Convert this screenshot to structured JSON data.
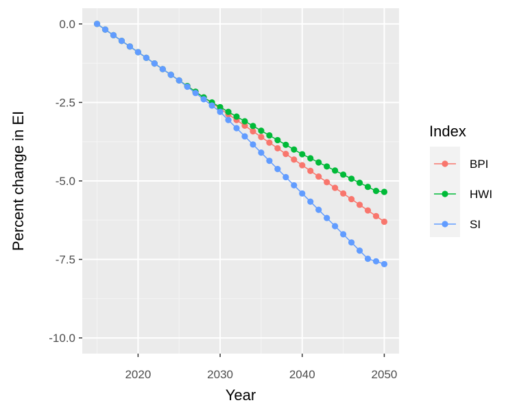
{
  "chart_data": {
    "type": "line",
    "xlabel": "Year",
    "ylabel": "Percent change in EI",
    "xlim": [
      2013.2,
      2051.8
    ],
    "ylim": [
      -10.5,
      0.5
    ],
    "x_ticks": [
      2020,
      2030,
      2040,
      2050
    ],
    "y_ticks": [
      0.0,
      -2.5,
      -5.0,
      -7.5,
      -10.0
    ],
    "x_tick_labels": [
      "2020",
      "2030",
      "2040",
      "2050"
    ],
    "y_tick_labels": [
      "0.0",
      "-2.5",
      "-5.0",
      "-7.5",
      "-10.0"
    ],
    "grid": true,
    "legend_title": "Index",
    "legend_position": "right",
    "x": [
      2015,
      2016,
      2017,
      2018,
      2019,
      2020,
      2021,
      2022,
      2023,
      2024,
      2025,
      2026,
      2027,
      2028,
      2029,
      2030,
      2031,
      2032,
      2033,
      2034,
      2035,
      2036,
      2037,
      2038,
      2039,
      2040,
      2041,
      2042,
      2043,
      2044,
      2045,
      2046,
      2047,
      2048,
      2049,
      2050
    ],
    "series": [
      {
        "name": "BPI",
        "color": "#F8766D",
        "values": [
          0.0,
          -0.18,
          -0.36,
          -0.54,
          -0.72,
          -0.9,
          -1.08,
          -1.26,
          -1.44,
          -1.62,
          -1.8,
          -1.98,
          -2.16,
          -2.34,
          -2.52,
          -2.7,
          -2.88,
          -3.06,
          -3.24,
          -3.42,
          -3.6,
          -3.78,
          -3.96,
          -4.14,
          -4.32,
          -4.5,
          -4.68,
          -4.86,
          -5.04,
          -5.22,
          -5.4,
          -5.58,
          -5.76,
          -5.94,
          -6.12,
          -6.3
        ]
      },
      {
        "name": "HWI",
        "color": "#00BA38",
        "values": [
          0.0,
          -0.18,
          -0.36,
          -0.54,
          -0.72,
          -0.9,
          -1.08,
          -1.26,
          -1.44,
          -1.62,
          -1.8,
          -1.98,
          -2.16,
          -2.34,
          -2.5,
          -2.65,
          -2.8,
          -2.95,
          -3.1,
          -3.25,
          -3.4,
          -3.55,
          -3.7,
          -3.85,
          -4.0,
          -4.15,
          -4.28,
          -4.41,
          -4.54,
          -4.67,
          -4.8,
          -4.93,
          -5.06,
          -5.19,
          -5.32,
          -5.35
        ]
      },
      {
        "name": "SI",
        "color": "#619CFF",
        "values": [
          0.0,
          -0.18,
          -0.36,
          -0.54,
          -0.72,
          -0.9,
          -1.08,
          -1.26,
          -1.44,
          -1.62,
          -1.8,
          -2.0,
          -2.2,
          -2.4,
          -2.6,
          -2.8,
          -3.06,
          -3.32,
          -3.58,
          -3.84,
          -4.1,
          -4.36,
          -4.62,
          -4.88,
          -5.14,
          -5.4,
          -5.66,
          -5.92,
          -6.18,
          -6.44,
          -6.7,
          -6.96,
          -7.22,
          -7.48,
          -7.56,
          -7.65
        ]
      }
    ]
  }
}
